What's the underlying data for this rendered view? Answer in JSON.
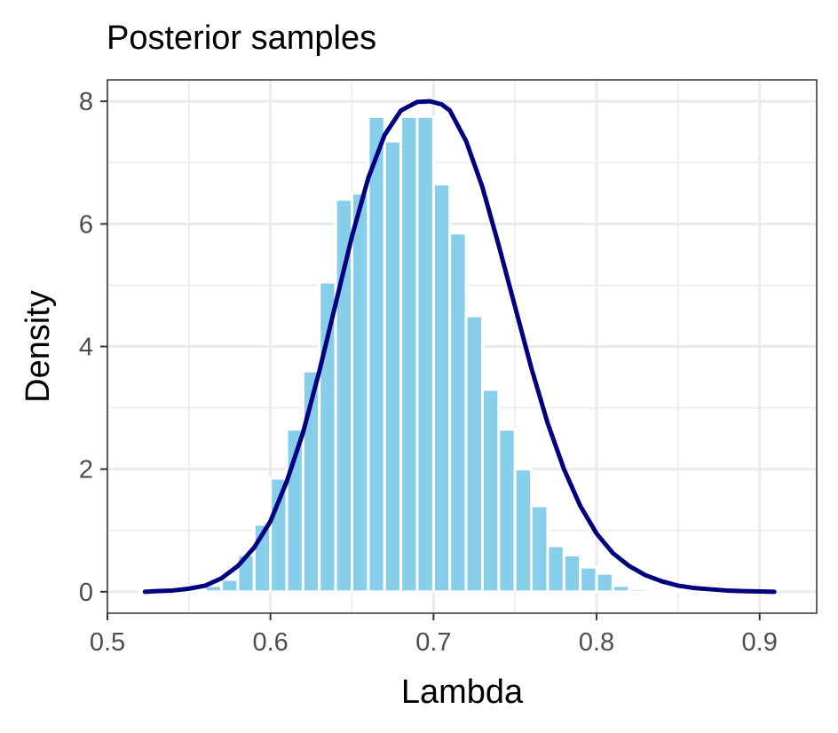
{
  "chart_data": {
    "type": "bar",
    "title": "Posterior samples",
    "xlabel": "Lambda",
    "ylabel": "Density",
    "xlim": [
      0.5,
      0.935
    ],
    "ylim": [
      -0.35,
      8.35
    ],
    "xticks": [
      0.5,
      0.6,
      0.7,
      0.8,
      0.9
    ],
    "xtick_labels": [
      "0.5",
      "0.6",
      "0.7",
      "0.8",
      "0.9"
    ],
    "yticks": [
      0,
      2,
      4,
      6,
      8
    ],
    "ytick_labels": [
      "0",
      "2",
      "4",
      "6",
      "8"
    ],
    "grid": true,
    "bin_width": 0.01,
    "histogram": {
      "name": "",
      "color": "#87ceeb",
      "bin_centers": [
        0.525,
        0.535,
        0.545,
        0.555,
        0.565,
        0.575,
        0.585,
        0.595,
        0.605,
        0.615,
        0.625,
        0.635,
        0.645,
        0.655,
        0.665,
        0.675,
        0.685,
        0.695,
        0.705,
        0.715,
        0.725,
        0.735,
        0.745,
        0.755,
        0.765,
        0.775,
        0.785,
        0.795,
        0.805,
        0.815,
        0.825,
        0.835,
        0.845,
        0.855,
        0.865,
        0.875,
        0.885,
        0.895,
        0.905
      ],
      "density": [
        0.0,
        0.0,
        0.0,
        0.0,
        0.1,
        0.2,
        0.6,
        1.1,
        1.85,
        2.65,
        3.6,
        5.05,
        6.4,
        6.5,
        7.75,
        7.35,
        7.75,
        7.75,
        6.65,
        5.85,
        4.5,
        3.3,
        2.65,
        2.0,
        1.4,
        0.75,
        0.6,
        0.4,
        0.3,
        0.1,
        0.05,
        0.0,
        0.0,
        0.0,
        0.0,
        0.0,
        0.0,
        0.0,
        0.0
      ]
    },
    "density_curve": {
      "name": "",
      "color": "#00007f",
      "x": [
        0.523,
        0.53,
        0.54,
        0.55,
        0.56,
        0.57,
        0.58,
        0.59,
        0.6,
        0.61,
        0.62,
        0.63,
        0.64,
        0.65,
        0.66,
        0.67,
        0.68,
        0.69,
        0.698,
        0.705,
        0.71,
        0.72,
        0.73,
        0.74,
        0.75,
        0.76,
        0.77,
        0.78,
        0.79,
        0.8,
        0.81,
        0.82,
        0.83,
        0.84,
        0.85,
        0.86,
        0.87,
        0.88,
        0.89,
        0.9,
        0.909
      ],
      "y": [
        0.0,
        0.01,
        0.02,
        0.05,
        0.1,
        0.22,
        0.42,
        0.72,
        1.15,
        1.8,
        2.6,
        3.6,
        4.7,
        5.8,
        6.75,
        7.45,
        7.85,
        7.99,
        8.0,
        7.95,
        7.85,
        7.35,
        6.6,
        5.65,
        4.65,
        3.65,
        2.75,
        2.0,
        1.4,
        0.95,
        0.63,
        0.42,
        0.27,
        0.17,
        0.1,
        0.06,
        0.04,
        0.02,
        0.01,
        0.005,
        0.0
      ]
    }
  }
}
